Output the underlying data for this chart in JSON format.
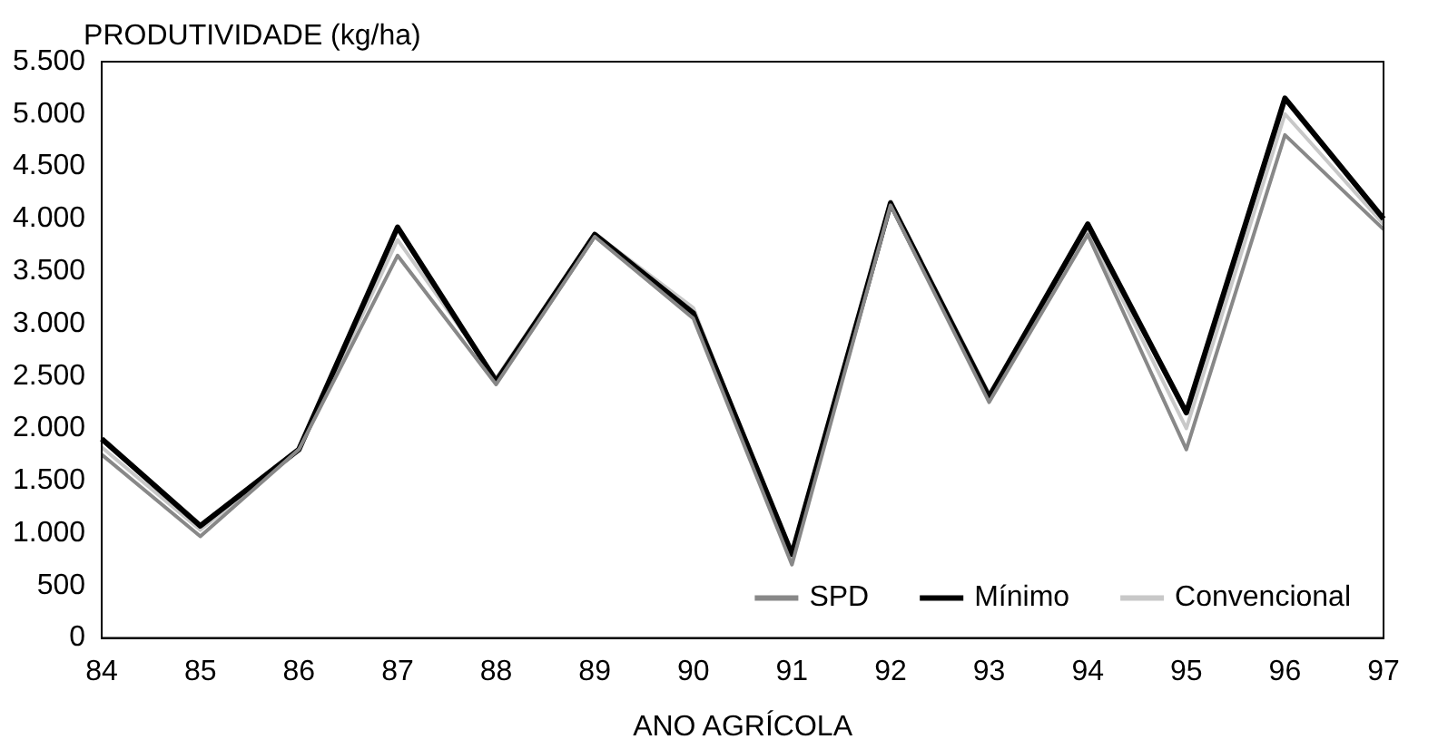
{
  "chart_data": {
    "type": "line",
    "ylabel": "PRODUTIVIDADE (kg/ha)",
    "xlabel": "ANO AGRÍCOLA",
    "categories": [
      "84",
      "85",
      "86",
      "87",
      "88",
      "89",
      "90",
      "91",
      "92",
      "93",
      "94",
      "95",
      "96",
      "97"
    ],
    "series": [
      {
        "name": "SPD",
        "color": "#888888",
        "values": [
          1750,
          970,
          1800,
          3650,
          2420,
          3830,
          3050,
          700,
          4130,
          2250,
          3850,
          1800,
          4800,
          3900
        ]
      },
      {
        "name": "Mínimo",
        "color": "#000000",
        "values": [
          1900,
          1070,
          1800,
          3920,
          2450,
          3850,
          3100,
          800,
          4150,
          2300,
          3950,
          2150,
          5150,
          4000
        ]
      },
      {
        "name": "Convencional",
        "color": "#c8c8c8",
        "values": [
          1820,
          1030,
          1790,
          3800,
          2480,
          3860,
          3150,
          750,
          4170,
          2330,
          3900,
          2000,
          5000,
          3950
        ]
      }
    ],
    "ylim": [
      0,
      5500
    ],
    "yticks": [
      0,
      {
        "value": 500,
        "label": "500"
      },
      {
        "value": 1000,
        "label": "1.000"
      },
      {
        "value": 1500,
        "label": "1.500"
      },
      {
        "value": 2000,
        "label": "2.000"
      },
      {
        "value": 2500,
        "label": "2.500"
      },
      {
        "value": 3000,
        "label": "3.000"
      },
      {
        "value": 3500,
        "label": "3.500"
      },
      {
        "value": 4000,
        "label": "4.000"
      },
      {
        "value": 4500,
        "label": "4.500"
      },
      {
        "value": 5000,
        "label": "5.000"
      },
      {
        "value": 5500,
        "label": "5.500"
      }
    ],
    "grid": false,
    "legend": "bottom right",
    "marker": "none",
    "line_style": "solid"
  }
}
